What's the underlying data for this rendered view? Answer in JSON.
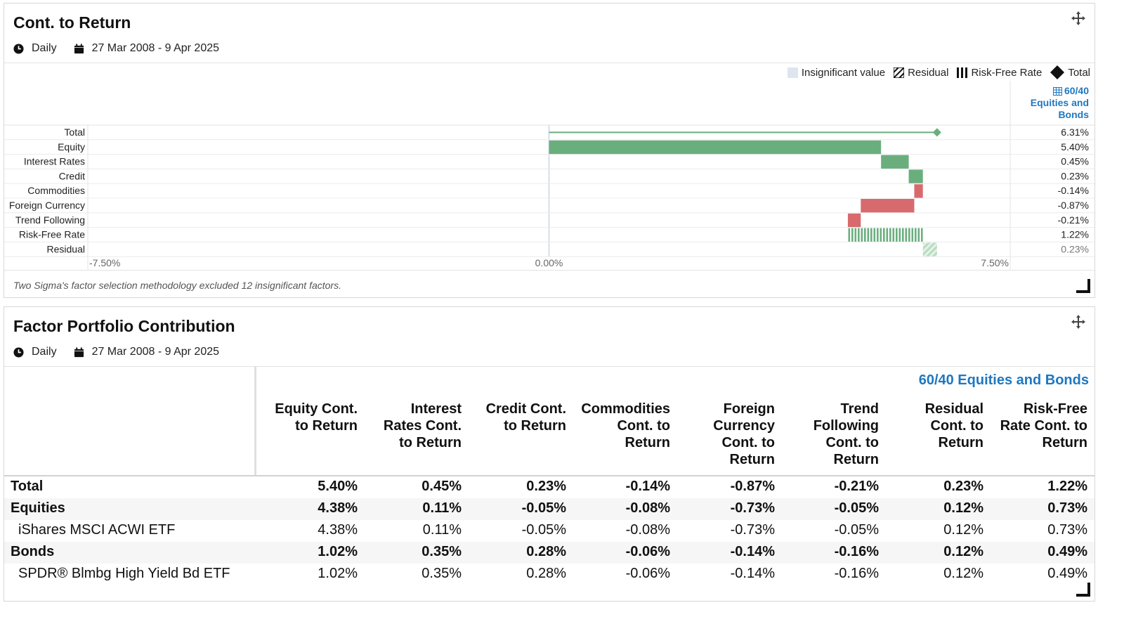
{
  "panel1": {
    "title": "Cont. to Return",
    "frequency": "Daily",
    "date_range": "27 Mar 2008 - 9 Apr 2025",
    "legend": [
      "Insignificant value",
      "Residual",
      "Risk-Free Rate",
      "Total"
    ],
    "portfolio_link_lines": [
      "60/40",
      "Equities and",
      "Bonds"
    ],
    "footnote": "Two Sigma's factor selection methodology excluded 12 insignificant factors."
  },
  "chart_data": {
    "type": "bar",
    "orientation": "horizontal-waterfall",
    "categories": [
      "Total",
      "Equity",
      "Interest Rates",
      "Credit",
      "Commodities",
      "Foreign Currency",
      "Trend Following",
      "Risk-Free Rate",
      "Residual"
    ],
    "values": [
      6.31,
      5.4,
      0.45,
      0.23,
      -0.14,
      -0.87,
      -0.21,
      1.22,
      0.23
    ],
    "value_labels": [
      "6.31%",
      "5.40%",
      "0.45%",
      "0.23%",
      "-0.14%",
      "-0.87%",
      "-0.21%",
      "1.22%",
      "0.23%"
    ],
    "bar_kinds": [
      "total",
      "normal",
      "normal",
      "normal",
      "normal",
      "normal",
      "normal",
      "risk-free",
      "residual"
    ],
    "xlim": [
      -7.5,
      7.5
    ],
    "x_ticks": [
      "-7.50%",
      "0.00%",
      "7.50%"
    ],
    "colors": {
      "positive": "#6aae7e",
      "negative": "#d86a6e",
      "residual": "#b9dcc1",
      "total_marker": "#6aae7e",
      "zero_line": "#c9d6e3"
    }
  },
  "panel2": {
    "title": "Factor Portfolio Contribution",
    "frequency": "Daily",
    "date_range": "27 Mar 2008 - 9 Apr 2025",
    "portfolio_name": "60/40 Equities and Bonds",
    "columns": [
      [
        "Equity Cont.",
        "to Return"
      ],
      [
        "Interest",
        "Rates Cont.",
        "to Return"
      ],
      [
        "Credit Cont.",
        "to Return"
      ],
      [
        "Commodities",
        "Cont. to",
        "Return"
      ],
      [
        "Foreign",
        "Currency",
        "Cont. to",
        "Return"
      ],
      [
        "Trend",
        "Following",
        "Cont. to",
        "Return"
      ],
      [
        "Residual",
        "Cont. to",
        "Return"
      ],
      [
        "Risk-Free",
        "Rate Cont. to",
        "Return"
      ]
    ],
    "rows": [
      {
        "label": "Total",
        "bold": true,
        "child": false,
        "values": [
          "5.40%",
          "0.45%",
          "0.23%",
          "-0.14%",
          "-0.87%",
          "-0.21%",
          "0.23%",
          "1.22%"
        ]
      },
      {
        "label": "Equities",
        "bold": true,
        "child": false,
        "values": [
          "4.38%",
          "0.11%",
          "-0.05%",
          "-0.08%",
          "-0.73%",
          "-0.05%",
          "0.12%",
          "0.73%"
        ]
      },
      {
        "label": "iShares MSCI ACWI ETF",
        "bold": false,
        "child": true,
        "values": [
          "4.38%",
          "0.11%",
          "-0.05%",
          "-0.08%",
          "-0.73%",
          "-0.05%",
          "0.12%",
          "0.73%"
        ]
      },
      {
        "label": "Bonds",
        "bold": true,
        "child": false,
        "values": [
          "1.02%",
          "0.35%",
          "0.28%",
          "-0.06%",
          "-0.14%",
          "-0.16%",
          "0.12%",
          "0.49%"
        ]
      },
      {
        "label": "SPDR® Blmbg High Yield Bd ETF",
        "bold": false,
        "child": true,
        "values": [
          "1.02%",
          "0.35%",
          "0.28%",
          "-0.06%",
          "-0.14%",
          "-0.16%",
          "0.12%",
          "0.49%"
        ]
      }
    ]
  }
}
